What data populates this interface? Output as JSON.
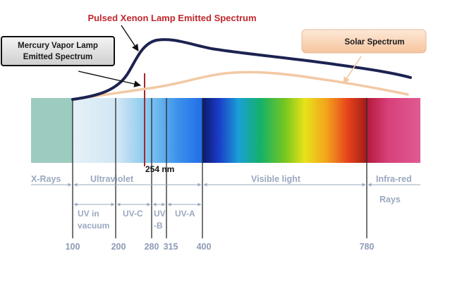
{
  "title": "Pulsed Xenon Lamp Emitted Spectrum",
  "mercury_label": [
    "Mercury Vapor Lamp",
    "Emitted Spectrum"
  ],
  "solar_label": "Solar Spectrum",
  "line_254": "254 nm",
  "bands": {
    "xrays": "X-Rays",
    "ultraviolet": "Ultraviolet",
    "visible": "Visible light",
    "infrared": "Infra-red",
    "infrared_2": "Rays"
  },
  "uv_sub": {
    "vacuum": [
      "UV in",
      "vacuum"
    ],
    "uvc": "UV-C",
    "uvb": [
      "UV",
      "-B"
    ],
    "uva": "UV-A"
  },
  "wavelengths": [
    "100",
    "200",
    "280",
    "315",
    "400",
    "780"
  ],
  "colors": {
    "xenon_curve": "#1c2350",
    "solar_curve": "#f2c9a4",
    "mercury_line": "#a4282a",
    "title": "#c0272d",
    "label_text": "#9aa8bf",
    "xray_band": "#9ccbbf",
    "infrared_band": "#de4c86"
  }
}
